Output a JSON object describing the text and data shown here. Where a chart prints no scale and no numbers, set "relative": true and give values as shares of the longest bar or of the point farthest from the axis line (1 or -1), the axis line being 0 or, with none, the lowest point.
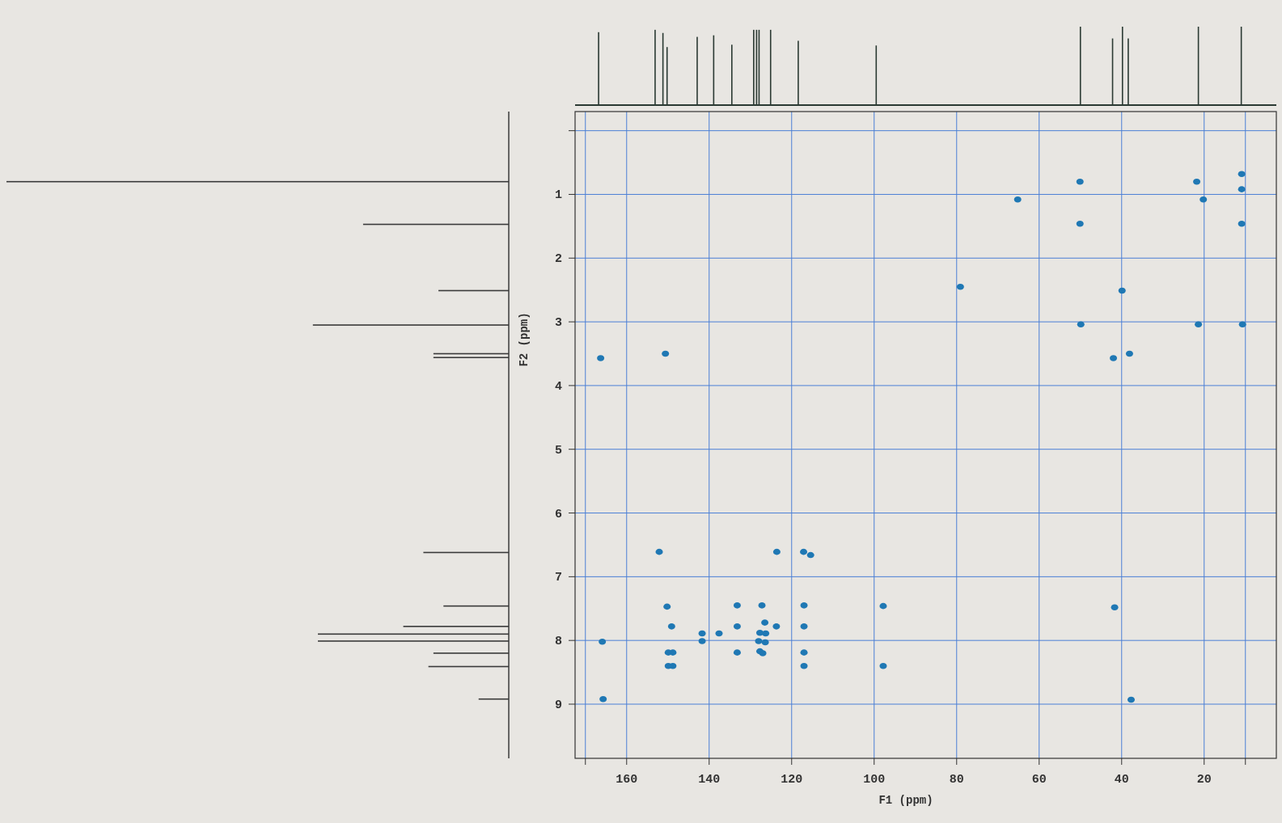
{
  "chart_data": [
    {
      "type": "bar",
      "relative": true,
      "color": "#2b3a33",
      "xlim": [
        172.5,
        2.5
      ],
      "x": [
        166.8,
        153.1,
        151.2,
        150.2,
        142.9,
        138.9,
        134.5,
        129.2,
        128.5,
        127.9,
        125.1,
        118.4,
        99.5,
        50.0,
        42.2,
        39.8,
        38.4,
        21.4,
        11.0
      ],
      "values": [
        0.93,
        0.96,
        0.92,
        0.74,
        0.87,
        0.89,
        0.77,
        0.96,
        0.96,
        0.96,
        0.96,
        0.82,
        0.76,
        1.0,
        0.85,
        1.0,
        0.85,
        1.0,
        1.0
      ]
    },
    {
      "type": "bar",
      "orientation": "horizontal",
      "relative": true,
      "color": "#3a3a3a",
      "ylim": [
        9.85,
        -0.3
      ],
      "x": [
        0.8,
        1.47,
        2.51,
        3.05,
        3.5,
        3.56,
        6.62,
        7.46,
        7.78,
        7.9,
        8.01,
        8.2,
        8.41,
        8.92
      ],
      "values": [
        1.0,
        0.29,
        0.14,
        0.39,
        0.15,
        0.15,
        0.17,
        0.13,
        0.21,
        0.38,
        0.38,
        0.15,
        0.16,
        0.06
      ]
    },
    {
      "type": "scatter",
      "marker": "circle",
      "color": "#1f78b4",
      "grid": true,
      "xlabel": "F1 (ppm)",
      "ylabel": "F2 (ppm)",
      "xlim": [
        172.5,
        2.5
      ],
      "ylim": [
        9.85,
        -0.3
      ],
      "xticks": [
        {
          "value": 170,
          "label": null
        },
        160,
        140,
        120,
        100,
        80,
        60,
        40,
        20,
        {
          "value": 10,
          "label": null
        }
      ],
      "yticks": [
        {
          "value": 0,
          "label": null
        },
        1,
        2,
        3,
        4,
        5,
        6,
        7,
        8,
        9
      ],
      "x": [
        166.3,
        150.6,
        152.1,
        123.6,
        117.1,
        115.4,
        150.2,
        133.2,
        127.2,
        117.0,
        97.8,
        149.1,
        133.2,
        126.5,
        123.7,
        117.0,
        141.7,
        137.6,
        127.7,
        126.3,
        165.9,
        141.7,
        128.0,
        126.4,
        149.9,
        148.8,
        133.2,
        127.7,
        127.0,
        117.0,
        149.9,
        148.8,
        117.0,
        97.8,
        165.7,
        50.1,
        21.8,
        10.9,
        10.9,
        65.2,
        20.2,
        50.1,
        10.9,
        39.9,
        79.1,
        49.9,
        21.4,
        10.7,
        42.0,
        38.1,
        41.7,
        37.7
      ],
      "values": [
        3.57,
        3.5,
        6.61,
        6.61,
        6.61,
        6.66,
        7.47,
        7.45,
        7.45,
        7.45,
        7.46,
        7.78,
        7.78,
        7.72,
        7.78,
        7.78,
        7.89,
        7.89,
        7.88,
        7.89,
        8.02,
        8.01,
        8.01,
        8.03,
        8.19,
        8.19,
        8.19,
        8.17,
        8.2,
        8.19,
        8.4,
        8.4,
        8.4,
        8.4,
        8.92,
        0.8,
        0.8,
        0.68,
        0.92,
        1.08,
        1.08,
        1.46,
        1.46,
        2.51,
        2.45,
        3.04,
        3.04,
        3.04,
        3.57,
        3.5,
        7.48,
        8.93
      ]
    }
  ]
}
